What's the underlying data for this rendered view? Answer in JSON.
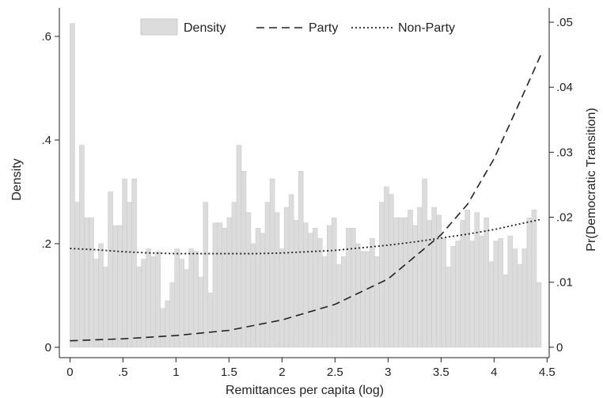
{
  "chart_data": {
    "type": "bar",
    "description_free": true,
    "x_axis": {
      "label": "Remittances per capita (log)",
      "range": [
        -0.1,
        4.52
      ],
      "ticks": [
        0,
        0.5,
        1,
        1.5,
        2,
        2.5,
        3,
        3.5,
        4,
        4.5
      ],
      "tick_labels": [
        "0",
        ".5",
        "1",
        "1.5",
        "2",
        "2.5",
        "3",
        "3.5",
        "4",
        "4.5"
      ]
    },
    "y_left": {
      "label": "Density",
      "range": [
        -0.02,
        0.655
      ],
      "ticks": [
        0,
        0.2,
        0.4,
        0.6
      ],
      "tick_labels": [
        "0",
        ".2",
        ".4",
        ".6"
      ]
    },
    "y_right": {
      "label": "Pr(Democratic Transition)",
      "range": [
        -0.0016,
        0.0522
      ],
      "ticks": [
        0,
        0.01,
        0.02,
        0.03,
        0.04,
        0.05
      ],
      "tick_labels": [
        "0",
        ".01",
        ".02",
        ".03",
        ".04",
        ".05"
      ]
    },
    "legend": {
      "placement": "top",
      "entries": [
        "Density",
        "Party",
        "Non-Party"
      ]
    },
    "histogram": {
      "name": "Density",
      "color": "#dcdcdc",
      "edge_color": "#c8c8c8",
      "bin_start": 0,
      "bin_width": 0.0449,
      "values": [
        0.625,
        0.28,
        0.39,
        0.25,
        0.25,
        0.17,
        0.2,
        0.155,
        0.3,
        0.235,
        0.235,
        0.325,
        0.28,
        0.325,
        0.155,
        0.17,
        0.19,
        0.175,
        0.185,
        0.075,
        0.09,
        0.125,
        0.19,
        0.17,
        0.15,
        0.19,
        0.185,
        0.135,
        0.28,
        0.105,
        0.24,
        0.24,
        0.23,
        0.25,
        0.28,
        0.39,
        0.34,
        0.26,
        0.2,
        0.23,
        0.22,
        0.28,
        0.325,
        0.26,
        0.19,
        0.27,
        0.295,
        0.245,
        0.34,
        0.24,
        0.22,
        0.23,
        0.21,
        0.175,
        0.235,
        0.25,
        0.16,
        0.175,
        0.23,
        0.23,
        0.2,
        0.185,
        0.185,
        0.21,
        0.175,
        0.28,
        0.31,
        0.295,
        0.25,
        0.25,
        0.25,
        0.265,
        0.235,
        0.27,
        0.325,
        0.245,
        0.27,
        0.255,
        0.21,
        0.155,
        0.195,
        0.205,
        0.245,
        0.265,
        0.205,
        0.26,
        0.215,
        0.25,
        0.165,
        0.205,
        0.21,
        0.14,
        0.215,
        0.19,
        0.16,
        0.19,
        0.25,
        0.265,
        0.125
      ]
    },
    "series": [
      {
        "name": "Party",
        "style": "dashed",
        "color": "#222222",
        "x": [
          0,
          0.5,
          1,
          1.5,
          2,
          2.5,
          3,
          3.5,
          3.75,
          4,
          4.25,
          4.45
        ],
        "values": [
          0.001,
          0.0013,
          0.0018,
          0.0026,
          0.0042,
          0.0066,
          0.0105,
          0.0173,
          0.022,
          0.029,
          0.038,
          0.0453
        ]
      },
      {
        "name": "Non-Party",
        "style": "dotted",
        "color": "#222222",
        "x": [
          0,
          0.25,
          0.5,
          0.75,
          1,
          1.25,
          1.5,
          1.75,
          2,
          2.25,
          2.5,
          2.75,
          3,
          3.25,
          3.5,
          3.75,
          4,
          4.25,
          4.45
        ],
        "values": [
          0.0152,
          0.015,
          0.0147,
          0.0145,
          0.0144,
          0.0144,
          0.0144,
          0.0144,
          0.0145,
          0.0147,
          0.0149,
          0.0153,
          0.0157,
          0.0162,
          0.0168,
          0.0174,
          0.0181,
          0.019,
          0.0197
        ]
      }
    ]
  }
}
